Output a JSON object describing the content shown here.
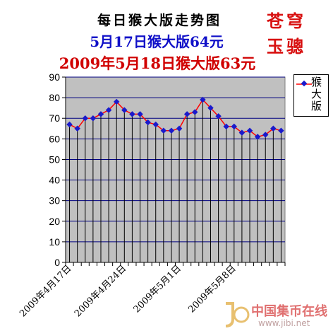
{
  "header": {
    "title": "每日猴大版走势图",
    "subtitle_prev": "5月17日猴大版64元",
    "subtitle_current": "2009年5月18日猴大版63元",
    "brand_line1": "苍穹",
    "brand_line2": "玉骢"
  },
  "watermark": {
    "text": "中国集币在线",
    "url": "www.jibi.net"
  },
  "colors": {
    "plot_background": "#c0c0c0",
    "grid": "#000080",
    "series_line": "#ff0000",
    "series_marker": "#1a1acc",
    "title_blue": "#1010c8",
    "title_red": "#d00000"
  },
  "chart_data": {
    "type": "line",
    "title": "每日猴大版走势图",
    "xlabel": "",
    "ylabel": "",
    "ylim": [
      0,
      90
    ],
    "yticks": [
      0,
      10,
      20,
      30,
      40,
      50,
      60,
      70,
      80,
      90
    ],
    "grid": true,
    "legend_position": "right",
    "x_tick_labels": [
      "2009年4月17日",
      "2009年4月24日",
      "2009年5月1日",
      "2009年5月8日"
    ],
    "x_tick_indices": [
      0,
      7,
      14,
      21
    ],
    "series": [
      {
        "name": "猴大版",
        "values": [
          67,
          65,
          70,
          70,
          72,
          74,
          78,
          74,
          72,
          72,
          68,
          67,
          64,
          64,
          65,
          72,
          73,
          79,
          75,
          71,
          66,
          66,
          63,
          64,
          61,
          62,
          65,
          64
        ]
      }
    ]
  }
}
